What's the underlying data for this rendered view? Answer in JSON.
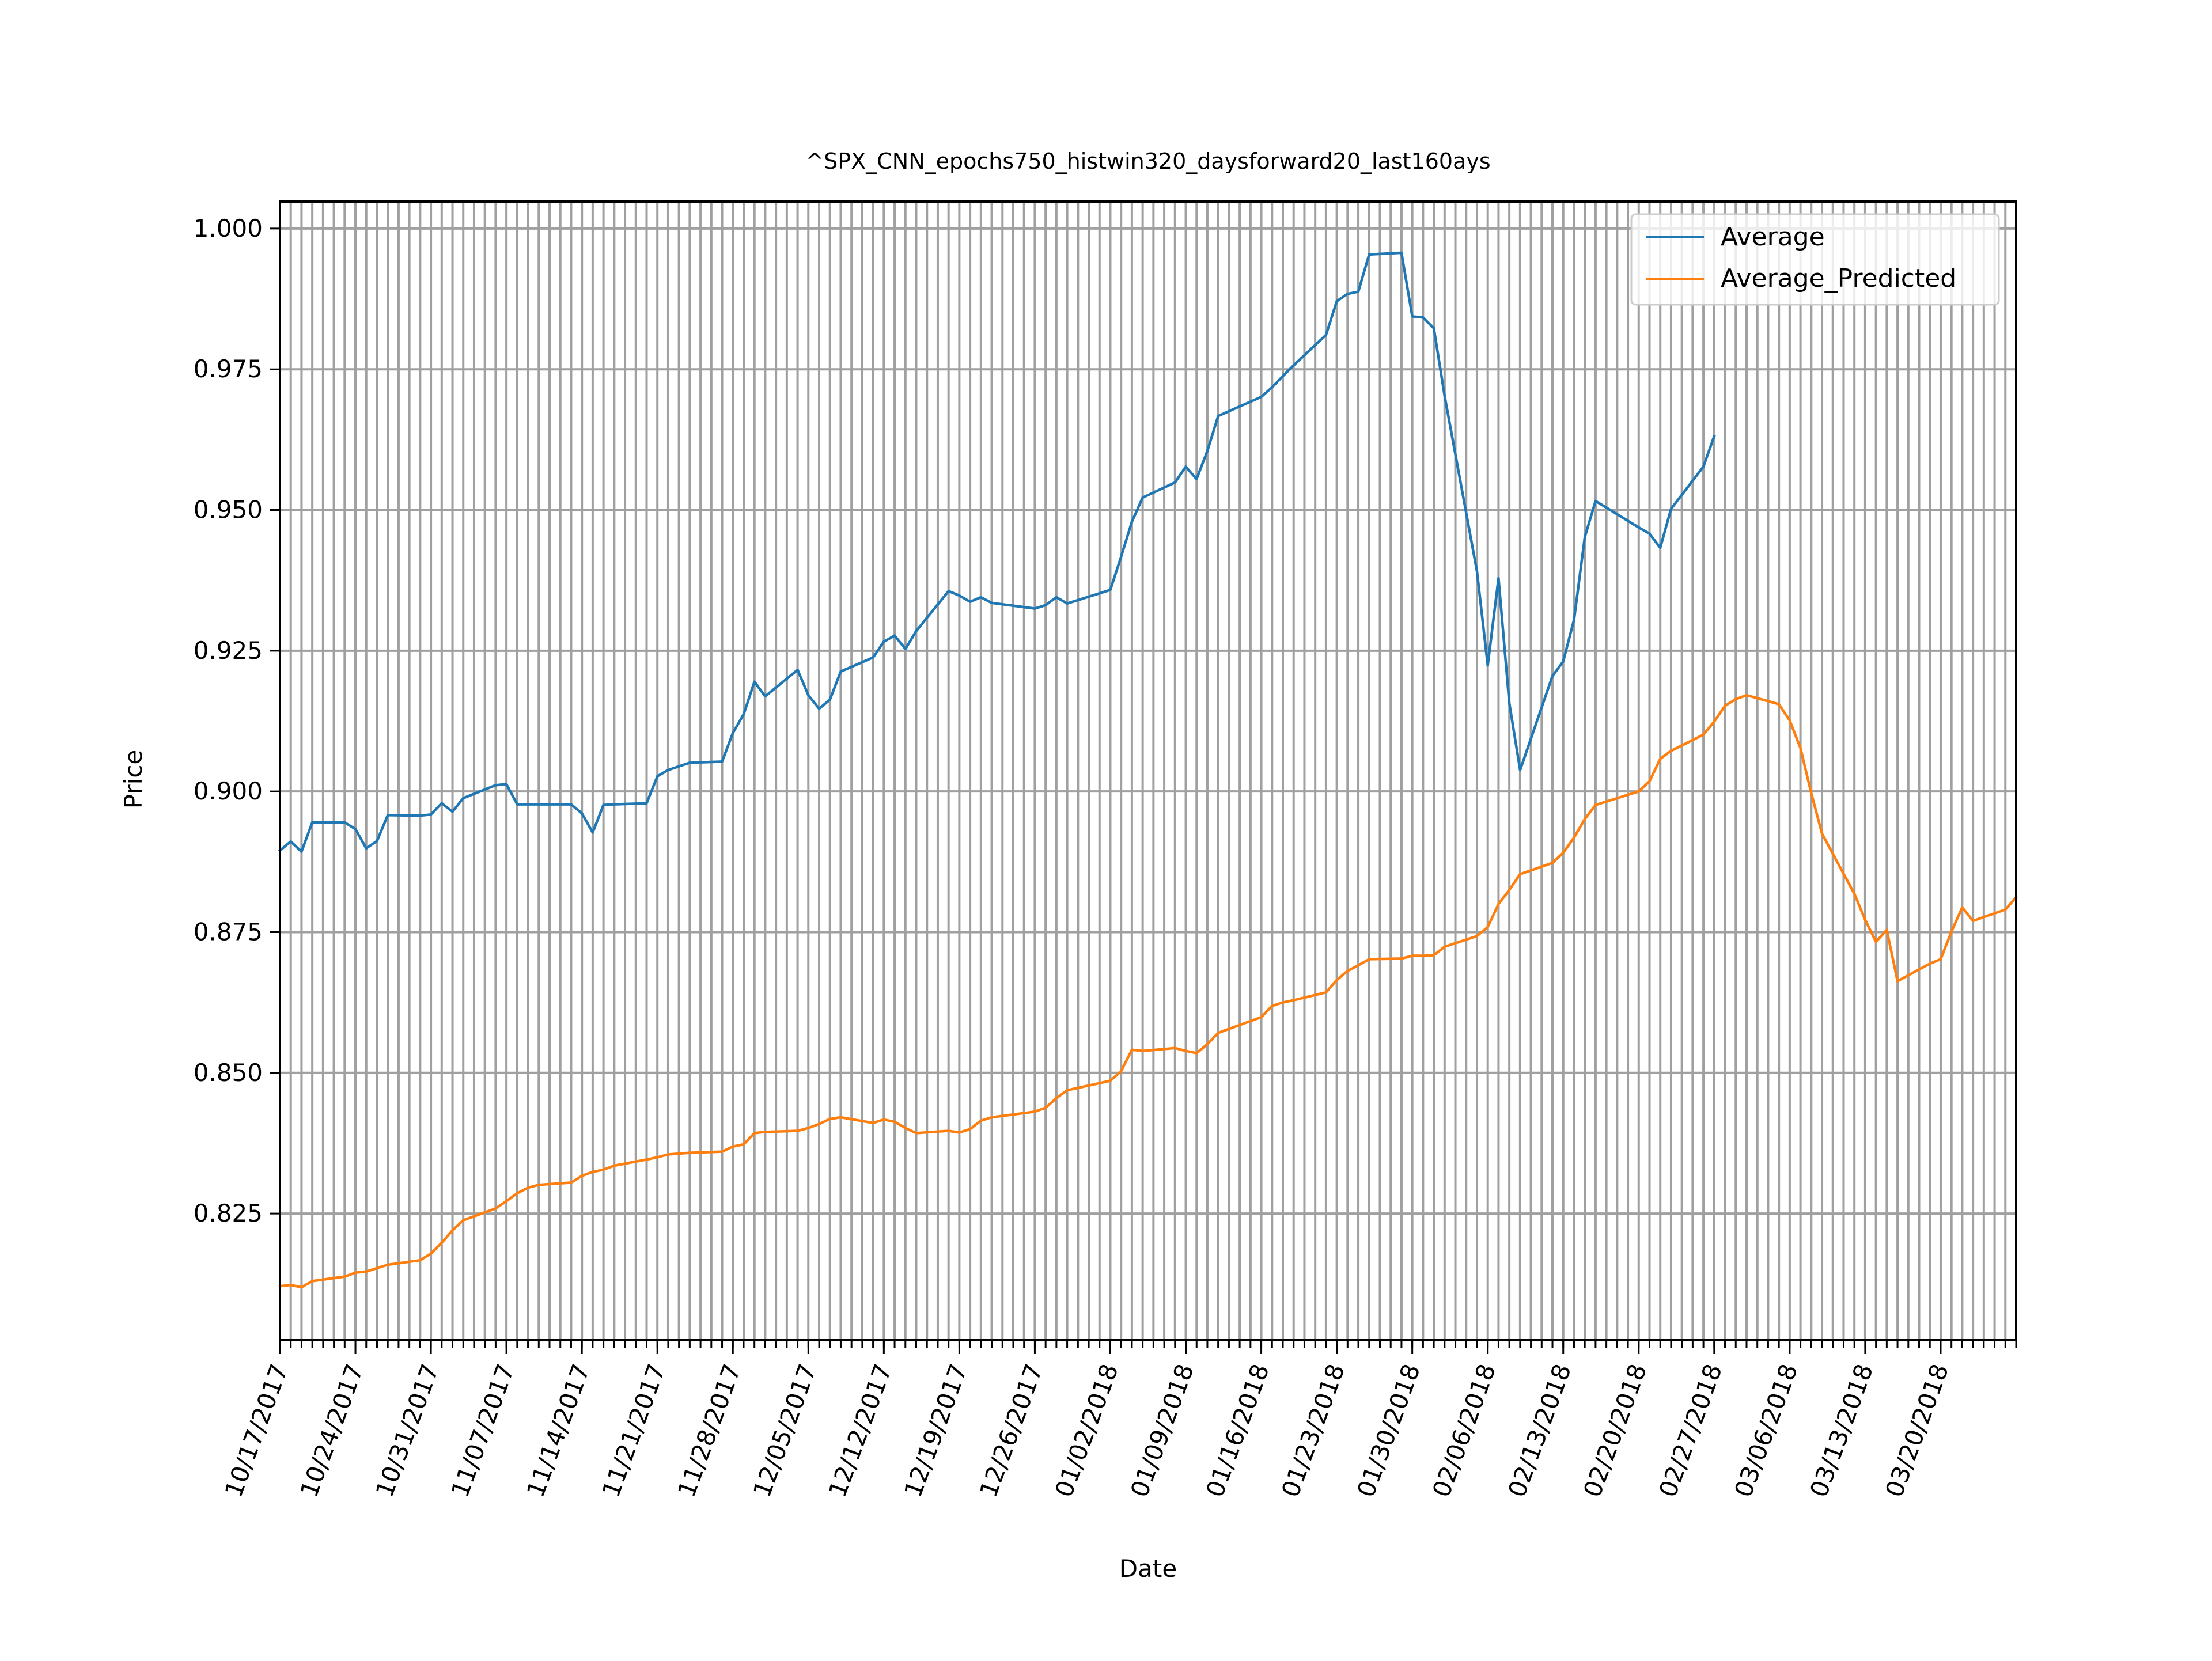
{
  "colors": {
    "average": "#1f77b4",
    "average_predicted": "#ff7f0e",
    "grid": "#a0a0a0",
    "axis": "#000000"
  },
  "chart_data": {
    "type": "line",
    "title": "^SPX_CNN_epochs750_histwin320_daysforward20_last160ays",
    "xlabel": "Date",
    "ylabel": "Price",
    "x_ticks_labeled": [
      "10/17/2017",
      "10/24/2017",
      "10/31/2017",
      "11/07/2017",
      "11/14/2017",
      "11/21/2017",
      "11/28/2017",
      "12/05/2017",
      "12/12/2017",
      "12/19/2017",
      "12/26/2017",
      "01/02/2018",
      "01/09/2018",
      "01/16/2018",
      "01/23/2018",
      "01/30/2018",
      "02/06/2018",
      "02/13/2018",
      "02/20/2018",
      "02/27/2018",
      "03/06/2018",
      "03/13/2018",
      "03/20/2018"
    ],
    "x_start": "10/17/2017",
    "x_end": "03/27/2018",
    "y_ticks": [
      "1.000",
      "0.975",
      "0.950",
      "0.925",
      "0.900",
      "0.875",
      "0.850",
      "0.825"
    ],
    "ylim": [
      0.8025,
      1.0048
    ],
    "grid": true,
    "legend_position": "upper-right",
    "series": [
      {
        "name": "Average",
        "color": "#1f77b4",
        "points": [
          [
            "10/17/2017",
            0.8895
          ],
          [
            "10/18/2017",
            0.8911
          ],
          [
            "10/19/2017",
            0.8893
          ],
          [
            "10/20/2017",
            0.8945
          ],
          [
            "10/23/2017",
            0.8945
          ],
          [
            "10/24/2017",
            0.8933
          ],
          [
            "10/25/2017",
            0.8899
          ],
          [
            "10/26/2017",
            0.8912
          ],
          [
            "10/27/2017",
            0.8958
          ],
          [
            "10/30/2017",
            0.8957
          ],
          [
            "10/31/2017",
            0.8959
          ],
          [
            "11/01/2017",
            0.8979
          ],
          [
            "11/02/2017",
            0.8964
          ],
          [
            "11/03/2017",
            0.8988
          ],
          [
            "11/06/2017",
            0.9011
          ],
          [
            "11/07/2017",
            0.9013
          ],
          [
            "11/08/2017",
            0.8977
          ],
          [
            "11/09/2017",
            0.8977
          ],
          [
            "11/10/2017",
            0.8977
          ],
          [
            "11/13/2017",
            0.8977
          ],
          [
            "11/14/2017",
            0.8961
          ],
          [
            "11/15/2017",
            0.8927
          ],
          [
            "11/16/2017",
            0.8976
          ],
          [
            "11/17/2017",
            0.8977
          ],
          [
            "11/20/2017",
            0.8979
          ],
          [
            "11/21/2017",
            0.9027
          ],
          [
            "11/22/2017",
            0.9038
          ],
          [
            "11/24/2017",
            0.9051
          ],
          [
            "11/27/2017",
            0.9053
          ],
          [
            "11/28/2017",
            0.9104
          ],
          [
            "11/29/2017",
            0.9137
          ],
          [
            "11/30/2017",
            0.9195
          ],
          [
            "12/01/2017",
            0.9169
          ],
          [
            "12/04/2017",
            0.9216
          ],
          [
            "12/05/2017",
            0.9171
          ],
          [
            "12/06/2017",
            0.9147
          ],
          [
            "12/07/2017",
            0.9163
          ],
          [
            "12/08/2017",
            0.9213
          ],
          [
            "12/11/2017",
            0.9238
          ],
          [
            "12/12/2017",
            0.9266
          ],
          [
            "12/13/2017",
            0.9277
          ],
          [
            "12/14/2017",
            0.9253
          ],
          [
            "12/15/2017",
            0.9285
          ],
          [
            "12/18/2017",
            0.9356
          ],
          [
            "12/19/2017",
            0.9348
          ],
          [
            "12/20/2017",
            0.9337
          ],
          [
            "12/21/2017",
            0.9345
          ],
          [
            "12/22/2017",
            0.9335
          ],
          [
            "12/26/2017",
            0.9325
          ],
          [
            "12/27/2017",
            0.9331
          ],
          [
            "12/28/2017",
            0.9345
          ],
          [
            "12/29/2017",
            0.9334
          ],
          [
            "01/02/2018",
            0.9358
          ],
          [
            "01/03/2018",
            0.9417
          ],
          [
            "01/04/2018",
            0.9479
          ],
          [
            "01/05/2018",
            0.9522
          ],
          [
            "01/08/2018",
            0.9549
          ],
          [
            "01/09/2018",
            0.9577
          ],
          [
            "01/10/2018",
            0.9555
          ],
          [
            "01/11/2018",
            0.9605
          ],
          [
            "01/12/2018",
            0.9667
          ],
          [
            "01/16/2018",
            0.9701
          ],
          [
            "01/17/2018",
            0.9718
          ],
          [
            "01/18/2018",
            0.9738
          ],
          [
            "01/19/2018",
            0.9757
          ],
          [
            "01/22/2018",
            0.9811
          ],
          [
            "01/23/2018",
            0.9871
          ],
          [
            "01/24/2018",
            0.9884
          ],
          [
            "01/25/2018",
            0.9888
          ],
          [
            "01/26/2018",
            0.9954
          ],
          [
            "01/29/2018",
            0.9957
          ],
          [
            "01/30/2018",
            0.9844
          ],
          [
            "01/31/2018",
            0.9842
          ],
          [
            "02/01/2018",
            0.9823
          ],
          [
            "02/02/2018",
            0.9703
          ],
          [
            "02/05/2018",
            0.9391
          ],
          [
            "02/06/2018",
            0.9224
          ],
          [
            "02/07/2018",
            0.9379
          ],
          [
            "02/08/2018",
            0.9157
          ],
          [
            "02/09/2018",
            0.9038
          ],
          [
            "02/12/2018",
            0.9205
          ],
          [
            "02/13/2018",
            0.9231
          ],
          [
            "02/14/2018",
            0.9305
          ],
          [
            "02/15/2018",
            0.9452
          ],
          [
            "02/16/2018",
            0.9516
          ],
          [
            "02/20/2018",
            0.9469
          ],
          [
            "02/21/2018",
            0.9458
          ],
          [
            "02/22/2018",
            0.9433
          ],
          [
            "02/23/2018",
            0.9502
          ],
          [
            "02/26/2018",
            0.9577
          ],
          [
            "02/27/2018",
            0.9631
          ]
        ]
      },
      {
        "name": "Average_Predicted",
        "color": "#ff7f0e",
        "points": [
          [
            "10/17/2017",
            0.8121
          ],
          [
            "10/18/2017",
            0.8123
          ],
          [
            "10/19/2017",
            0.8119
          ],
          [
            "10/20/2017",
            0.813
          ],
          [
            "10/23/2017",
            0.8138
          ],
          [
            "10/24/2017",
            0.8145
          ],
          [
            "10/25/2017",
            0.8147
          ],
          [
            "10/26/2017",
            0.8153
          ],
          [
            "10/27/2017",
            0.8159
          ],
          [
            "10/30/2017",
            0.8167
          ],
          [
            "10/31/2017",
            0.8179
          ],
          [
            "11/01/2017",
            0.8198
          ],
          [
            "11/02/2017",
            0.822
          ],
          [
            "11/03/2017",
            0.8238
          ],
          [
            "11/06/2017",
            0.8259
          ],
          [
            "11/07/2017",
            0.8272
          ],
          [
            "11/08/2017",
            0.8286
          ],
          [
            "11/09/2017",
            0.8296
          ],
          [
            "11/10/2017",
            0.8301
          ],
          [
            "11/13/2017",
            0.8305
          ],
          [
            "11/14/2017",
            0.8317
          ],
          [
            "11/15/2017",
            0.8324
          ],
          [
            "11/16/2017",
            0.8328
          ],
          [
            "11/17/2017",
            0.8335
          ],
          [
            "11/20/2017",
            0.8346
          ],
          [
            "11/21/2017",
            0.835
          ],
          [
            "11/22/2017",
            0.8355
          ],
          [
            "11/24/2017",
            0.8358
          ],
          [
            "11/27/2017",
            0.836
          ],
          [
            "11/28/2017",
            0.8369
          ],
          [
            "11/29/2017",
            0.8373
          ],
          [
            "11/30/2017",
            0.8393
          ],
          [
            "12/01/2017",
            0.8395
          ],
          [
            "12/04/2017",
            0.8397
          ],
          [
            "12/05/2017",
            0.8402
          ],
          [
            "12/06/2017",
            0.8409
          ],
          [
            "12/07/2017",
            0.8418
          ],
          [
            "12/08/2017",
            0.8421
          ],
          [
            "12/11/2017",
            0.8411
          ],
          [
            "12/12/2017",
            0.8417
          ],
          [
            "12/13/2017",
            0.8413
          ],
          [
            "12/14/2017",
            0.8402
          ],
          [
            "12/15/2017",
            0.8393
          ],
          [
            "12/18/2017",
            0.8397
          ],
          [
            "12/19/2017",
            0.8394
          ],
          [
            "12/20/2017",
            0.84
          ],
          [
            "12/21/2017",
            0.8415
          ],
          [
            "12/22/2017",
            0.8421
          ],
          [
            "12/26/2017",
            0.8431
          ],
          [
            "12/27/2017",
            0.8438
          ],
          [
            "12/28/2017",
            0.8455
          ],
          [
            "12/29/2017",
            0.8469
          ],
          [
            "01/02/2018",
            0.8486
          ],
          [
            "01/03/2018",
            0.8503
          ],
          [
            "01/04/2018",
            0.8541
          ],
          [
            "01/05/2018",
            0.8539
          ],
          [
            "01/08/2018",
            0.8544
          ],
          [
            "01/09/2018",
            0.8539
          ],
          [
            "01/10/2018",
            0.8535
          ],
          [
            "01/11/2018",
            0.8551
          ],
          [
            "01/12/2018",
            0.8571
          ],
          [
            "01/16/2018",
            0.8599
          ],
          [
            "01/17/2018",
            0.8619
          ],
          [
            "01/18/2018",
            0.8625
          ],
          [
            "01/19/2018",
            0.8629
          ],
          [
            "01/22/2018",
            0.8643
          ],
          [
            "01/23/2018",
            0.8665
          ],
          [
            "01/24/2018",
            0.8681
          ],
          [
            "01/25/2018",
            0.8691
          ],
          [
            "01/26/2018",
            0.8702
          ],
          [
            "01/29/2018",
            0.8703
          ],
          [
            "01/30/2018",
            0.8708
          ],
          [
            "01/31/2018",
            0.8708
          ],
          [
            "02/01/2018",
            0.8709
          ],
          [
            "02/02/2018",
            0.8724
          ],
          [
            "02/05/2018",
            0.8743
          ],
          [
            "02/06/2018",
            0.8759
          ],
          [
            "02/07/2018",
            0.88
          ],
          [
            "02/08/2018",
            0.8825
          ],
          [
            "02/09/2018",
            0.8853
          ],
          [
            "02/12/2018",
            0.8873
          ],
          [
            "02/13/2018",
            0.8891
          ],
          [
            "02/14/2018",
            0.8918
          ],
          [
            "02/15/2018",
            0.8951
          ],
          [
            "02/16/2018",
            0.8976
          ],
          [
            "02/20/2018",
            0.9
          ],
          [
            "02/21/2018",
            0.9018
          ],
          [
            "02/22/2018",
            0.9058
          ],
          [
            "02/23/2018",
            0.9072
          ],
          [
            "02/26/2018",
            0.9101
          ],
          [
            "02/27/2018",
            0.9124
          ],
          [
            "02/28/2018",
            0.9152
          ],
          [
            "03/01/2018",
            0.9164
          ],
          [
            "03/02/2018",
            0.9171
          ],
          [
            "03/05/2018",
            0.9155
          ],
          [
            "03/06/2018",
            0.9126
          ],
          [
            "03/07/2018",
            0.9077
          ],
          [
            "03/08/2018",
            0.8997
          ],
          [
            "03/09/2018",
            0.8925
          ],
          [
            "03/12/2018",
            0.8818
          ],
          [
            "03/13/2018",
            0.8772
          ],
          [
            "03/14/2018",
            0.8733
          ],
          [
            "03/15/2018",
            0.8754
          ],
          [
            "03/16/2018",
            0.8663
          ],
          [
            "03/19/2018",
            0.8694
          ],
          [
            "03/20/2018",
            0.8702
          ],
          [
            "03/21/2018",
            0.8751
          ],
          [
            "03/22/2018",
            0.8794
          ],
          [
            "03/23/2018",
            0.877
          ],
          [
            "03/26/2018",
            0.879
          ],
          [
            "03/27/2018",
            0.8812
          ]
        ]
      }
    ]
  }
}
